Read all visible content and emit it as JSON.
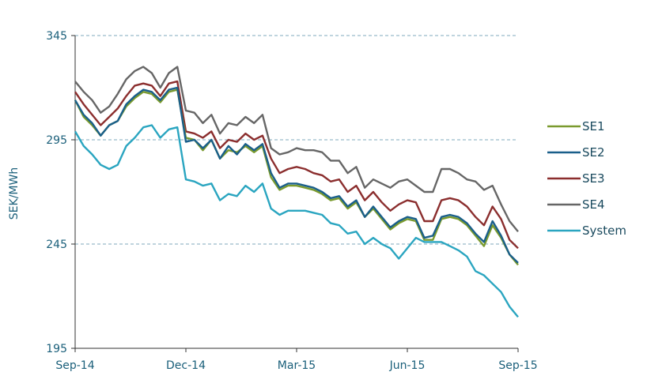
{
  "chart_data": {
    "type": "line",
    "ylabel": "SEK/MWh",
    "xlabel": "",
    "ylim": [
      195,
      345
    ],
    "yticks": [
      195,
      245,
      295,
      345
    ],
    "grid": "horizontal dashed at 245, 295, 345",
    "x_tick_labels": [
      "Sep-14",
      "Dec-14",
      "Mar-15",
      "Jun-15",
      "Sep-15"
    ],
    "legend_position": "right",
    "x_week_index": [
      0,
      1,
      2,
      3,
      4,
      5,
      6,
      7,
      8,
      9,
      10,
      11,
      12,
      13,
      14,
      15,
      16,
      17,
      18,
      19,
      20,
      21,
      22,
      23,
      24,
      25,
      26,
      27,
      28,
      29,
      30,
      31,
      32,
      33,
      34,
      35,
      36,
      37,
      38,
      39,
      40,
      41,
      42,
      43,
      44,
      45,
      46,
      47,
      48,
      49,
      50,
      51,
      52
    ],
    "series": [
      {
        "name": "SE1",
        "color": "#7a9a2e",
        "values": [
          314,
          306,
          302,
          297,
          302,
          304,
          311,
          315,
          318,
          317,
          313,
          318,
          319,
          296,
          295,
          290,
          295,
          286,
          290,
          289,
          292,
          289,
          292,
          277,
          271,
          273,
          273,
          272,
          271,
          269,
          266,
          267,
          262,
          265,
          258,
          262,
          257,
          252,
          255,
          257,
          256,
          247,
          247,
          257,
          258,
          257,
          254,
          249,
          244,
          254,
          248,
          240,
          235
        ]
      },
      {
        "name": "SE2",
        "color": "#1a5f8a",
        "values": [
          314,
          307,
          303,
          297,
          302,
          304,
          312,
          316,
          319,
          318,
          314,
          319,
          320,
          294,
          295,
          291,
          295,
          286,
          292,
          288,
          293,
          290,
          293,
          279,
          272,
          274,
          274,
          273,
          272,
          270,
          267,
          268,
          263,
          266,
          258,
          263,
          258,
          253,
          256,
          258,
          257,
          248,
          249,
          258,
          259,
          258,
          255,
          250,
          246,
          256,
          249,
          240,
          236
        ]
      },
      {
        "name": "SE3",
        "color": "#8b2e2e",
        "values": [
          318,
          312,
          307,
          302,
          306,
          310,
          316,
          321,
          322,
          321,
          316,
          322,
          323,
          299,
          298,
          296,
          299,
          291,
          295,
          294,
          298,
          295,
          297,
          286,
          279,
          281,
          282,
          281,
          279,
          278,
          275,
          276,
          270,
          273,
          266,
          270,
          265,
          261,
          264,
          266,
          265,
          256,
          256,
          266,
          267,
          266,
          263,
          258,
          254,
          263,
          257,
          247,
          243
        ]
      },
      {
        "name": "SE4",
        "color": "#666666",
        "values": [
          323,
          318,
          314,
          308,
          311,
          317,
          324,
          328,
          330,
          327,
          320,
          327,
          330,
          309,
          308,
          303,
          307,
          298,
          303,
          302,
          306,
          303,
          307,
          291,
          288,
          289,
          291,
          290,
          290,
          289,
          285,
          285,
          279,
          282,
          272,
          276,
          274,
          272,
          275,
          276,
          273,
          270,
          270,
          281,
          281,
          279,
          276,
          275,
          271,
          273,
          264,
          256,
          251
        ]
      },
      {
        "name": "System",
        "color": "#2aa5c0",
        "values": [
          299,
          292,
          288,
          283,
          281,
          283,
          292,
          296,
          301,
          302,
          296,
          300,
          301,
          276,
          275,
          273,
          274,
          266,
          269,
          268,
          273,
          270,
          274,
          262,
          259,
          261,
          261,
          261,
          260,
          259,
          255,
          254,
          250,
          251,
          245,
          248,
          245,
          243,
          238,
          243,
          248,
          246,
          246,
          246,
          244,
          242,
          239,
          232,
          230,
          226,
          222,
          215,
          210
        ]
      }
    ],
    "legend": [
      "SE1",
      "SE2",
      "SE3",
      "SE4",
      "System"
    ]
  }
}
